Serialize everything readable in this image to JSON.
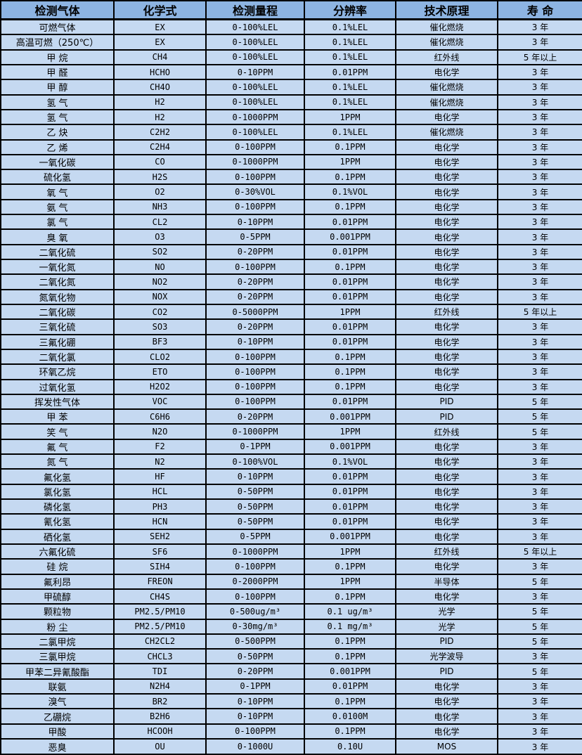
{
  "table": {
    "colors": {
      "header_bg": "#8db4e2",
      "row_bg": "#c5d9f1",
      "border": "#000000",
      "text": "#000000"
    },
    "columns": [
      "检测气体",
      "化学式",
      "检测量程",
      "分辨率",
      "技术原理",
      "寿 命"
    ],
    "fields": [
      "gas",
      "formula",
      "range",
      "resolution",
      "principle",
      "life"
    ],
    "rows": [
      {
        "gas": "可燃气体",
        "formula": "EX",
        "range": "0-100%LEL",
        "resolution": "0.1%LEL",
        "principle": "催化燃烧",
        "life": "3 年"
      },
      {
        "gas": "高温可燃（250℃）",
        "formula": "EX",
        "range": "0-100%LEL",
        "resolution": "0.1%LEL",
        "principle": "催化燃烧",
        "life": "3 年"
      },
      {
        "gas": "甲 烷",
        "formula": "CH4",
        "range": "0-100%LEL",
        "resolution": "0.1%LEL",
        "principle": "红外线",
        "life": "5 年以上"
      },
      {
        "gas": "甲 醛",
        "formula": "HCHO",
        "range": "0-10PPM",
        "resolution": "0.01PPM",
        "principle": "电化学",
        "life": "3 年"
      },
      {
        "gas": "甲 醇",
        "formula": "CH4O",
        "range": "0-100%LEL",
        "resolution": "0.1%LEL",
        "principle": "催化燃烧",
        "life": "3 年"
      },
      {
        "gas": "氢 气",
        "formula": "H2",
        "range": "0-100%LEL",
        "resolution": "0.1%LEL",
        "principle": "催化燃烧",
        "life": "3 年"
      },
      {
        "gas": "氢 气",
        "formula": "H2",
        "range": "0-1000PPM",
        "resolution": "1PPM",
        "principle": "电化学",
        "life": "3 年"
      },
      {
        "gas": "乙 炔",
        "formula": "C2H2",
        "range": "0-100%LEL",
        "resolution": "0.1%LEL",
        "principle": "催化燃烧",
        "life": "3 年"
      },
      {
        "gas": "乙 烯",
        "formula": "C2H4",
        "range": "0-100PPM",
        "resolution": "0.1PPM",
        "principle": "电化学",
        "life": "3 年"
      },
      {
        "gas": "一氧化碳",
        "formula": "CO",
        "range": "0-1000PPM",
        "resolution": "1PPM",
        "principle": "电化学",
        "life": "3 年"
      },
      {
        "gas": "硫化氢",
        "formula": "H2S",
        "range": "0-100PPM",
        "resolution": "0.1PPM",
        "principle": "电化学",
        "life": "3 年"
      },
      {
        "gas": "氧 气",
        "formula": "O2",
        "range": "0-30%VOL",
        "resolution": "0.1%VOL",
        "principle": "电化学",
        "life": "3 年"
      },
      {
        "gas": "氨 气",
        "formula": "NH3",
        "range": "0-100PPM",
        "resolution": "0.1PPM",
        "principle": "电化学",
        "life": "3 年"
      },
      {
        "gas": "氯 气",
        "formula": "CL2",
        "range": "0-10PPM",
        "resolution": "0.01PPM",
        "principle": "电化学",
        "life": "3 年"
      },
      {
        "gas": "臭 氧",
        "formula": "O3",
        "range": "0-5PPM",
        "resolution": "0.001PPM",
        "principle": "电化学",
        "life": "3 年"
      },
      {
        "gas": "二氧化硫",
        "formula": "SO2",
        "range": "0-20PPM",
        "resolution": "0.01PPM",
        "principle": "电化学",
        "life": "3 年"
      },
      {
        "gas": "一氧化氮",
        "formula": "NO",
        "range": "0-100PPM",
        "resolution": "0.1PPM",
        "principle": "电化学",
        "life": "3 年"
      },
      {
        "gas": "二氧化氮",
        "formula": "NO2",
        "range": "0-20PPM",
        "resolution": "0.01PPM",
        "principle": "电化学",
        "life": "3 年"
      },
      {
        "gas": "氮氧化物",
        "formula": "NOX",
        "range": "0-20PPM",
        "resolution": "0.01PPM",
        "principle": "电化学",
        "life": "3 年"
      },
      {
        "gas": "二氧化碳",
        "formula": "CO2",
        "range": "0-5000PPM",
        "resolution": "1PPM",
        "principle": "红外线",
        "life": "5 年以上"
      },
      {
        "gas": "三氧化硫",
        "formula": "SO3",
        "range": "0-20PPM",
        "resolution": "0.01PPM",
        "principle": "电化学",
        "life": "3 年"
      },
      {
        "gas": "三氟化硼",
        "formula": "BF3",
        "range": "0-10PPM",
        "resolution": "0.01PPM",
        "principle": "电化学",
        "life": "3 年"
      },
      {
        "gas": "二氧化氯",
        "formula": "CLO2",
        "range": "0-100PPM",
        "resolution": "0.1PPM",
        "principle": "电化学",
        "life": "3 年"
      },
      {
        "gas": "环氧乙烷",
        "formula": "ETO",
        "range": "0-100PPM",
        "resolution": "0.1PPM",
        "principle": "电化学",
        "life": "3 年"
      },
      {
        "gas": "过氧化氢",
        "formula": "H2O2",
        "range": "0-100PPM",
        "resolution": "0.1PPM",
        "principle": "电化学",
        "life": "3 年"
      },
      {
        "gas": "挥发性气体",
        "formula": "VOC",
        "range": "0-100PPM",
        "resolution": "0.01PPM",
        "principle": "PID",
        "life": "5 年"
      },
      {
        "gas": "甲 苯",
        "formula": "C6H6",
        "range": "0-20PPM",
        "resolution": "0.001PPM",
        "principle": "PID",
        "life": "5 年"
      },
      {
        "gas": "笑 气",
        "formula": "N2O",
        "range": "0-1000PPM",
        "resolution": "1PPM",
        "principle": "红外线",
        "life": "5 年"
      },
      {
        "gas": "氟 气",
        "formula": "F2",
        "range": "0-1PPM",
        "resolution": "0.001PPM",
        "principle": "电化学",
        "life": "3 年"
      },
      {
        "gas": "氮 气",
        "formula": "N2",
        "range": "0-100%VOL",
        "resolution": "0.1%VOL",
        "principle": "电化学",
        "life": "3 年"
      },
      {
        "gas": "氟化氢",
        "formula": "HF",
        "range": "0-10PPM",
        "resolution": "0.01PPM",
        "principle": "电化学",
        "life": "3 年"
      },
      {
        "gas": "氯化氢",
        "formula": "HCL",
        "range": "0-50PPM",
        "resolution": "0.01PPM",
        "principle": "电化学",
        "life": "3 年"
      },
      {
        "gas": "磷化氢",
        "formula": "PH3",
        "range": "0-50PPM",
        "resolution": "0.01PPM",
        "principle": "电化学",
        "life": "3 年"
      },
      {
        "gas": "氰化氢",
        "formula": "HCN",
        "range": "0-50PPM",
        "resolution": "0.01PPM",
        "principle": "电化学",
        "life": "3 年"
      },
      {
        "gas": "硒化氢",
        "formula": "SEH2",
        "range": "0-5PPM",
        "resolution": "0.001PPM",
        "principle": "电化学",
        "life": "3 年"
      },
      {
        "gas": "六氟化硫",
        "formula": "SF6",
        "range": "0-1000PPM",
        "resolution": "1PPM",
        "principle": "红外线",
        "life": "5 年以上"
      },
      {
        "gas": "硅 烷",
        "formula": "SIH4",
        "range": "0-100PPM",
        "resolution": "0.1PPM",
        "principle": "电化学",
        "life": "3 年"
      },
      {
        "gas": "氟利昂",
        "formula": "FREON",
        "range": "0-2000PPM",
        "resolution": "1PPM",
        "principle": "半导体",
        "life": "5 年"
      },
      {
        "gas": "甲硫醇",
        "formula": "CH4S",
        "range": "0-100PPM",
        "resolution": "0.1PPM",
        "principle": "电化学",
        "life": "3 年"
      },
      {
        "gas": "颗粒物",
        "formula": "PM2.5/PM10",
        "range": "0-500ug/m³",
        "resolution": "0.1 ug/m³",
        "principle": "光学",
        "life": "5 年"
      },
      {
        "gas": "粉 尘",
        "formula": "PM2.5/PM10",
        "range": "0-30mg/m³",
        "resolution": "0.1 mg/m³",
        "principle": "光学",
        "life": "5 年"
      },
      {
        "gas": "二氯甲烷",
        "formula": "CH2CL2",
        "range": "0-500PPM",
        "resolution": "0.1PPM",
        "principle": "PID",
        "life": "5 年"
      },
      {
        "gas": "三氯甲烷",
        "formula": "CHCL3",
        "range": "0-50PPM",
        "resolution": "0.1PPM",
        "principle": "光学波导",
        "life": "3 年"
      },
      {
        "gas": "甲苯二异氰酸酯",
        "formula": "TDI",
        "range": "0-20PPM",
        "resolution": "0.001PPM",
        "principle": "PID",
        "life": "5 年"
      },
      {
        "gas": "联氨",
        "formula": "N2H4",
        "range": "0-1PPM",
        "resolution": "0.01PPM",
        "principle": "电化学",
        "life": "3 年"
      },
      {
        "gas": "溴气",
        "formula": "BR2",
        "range": "0-10PPM",
        "resolution": "0.1PPM",
        "principle": "电化学",
        "life": "3 年"
      },
      {
        "gas": "乙硼烷",
        "formula": "B2H6",
        "range": "0-10PPM",
        "resolution": "0.0100M",
        "principle": "电化学",
        "life": "3 年"
      },
      {
        "gas": "甲酸",
        "formula": "HCOOH",
        "range": "0-100PPM",
        "resolution": "0.1PPM",
        "principle": "电化学",
        "life": "3 年"
      },
      {
        "gas": "恶臭",
        "formula": "OU",
        "range": "0-1000U",
        "resolution": "0.10U",
        "principle": "MOS",
        "life": "3 年"
      }
    ]
  }
}
